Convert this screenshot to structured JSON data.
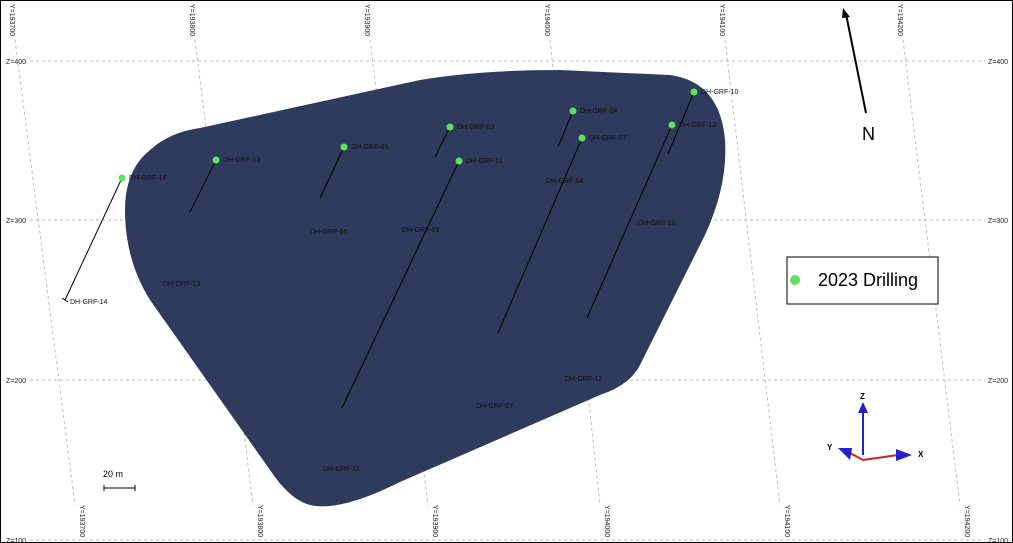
{
  "grid": {
    "z_labels": [
      "Z=400",
      "Z=300",
      "Z=200",
      "Z=100"
    ],
    "y_labels": [
      "Y=193700",
      "Y=193800",
      "Y=193900",
      "Y=194000",
      "Y=194100",
      "Y=194200"
    ]
  },
  "holes": [
    {
      "name": "DH-GRF-14",
      "end_label": "DH-GRF-14"
    },
    {
      "name": "DH-GRF-13",
      "end_label": "DH-GRF-13"
    },
    {
      "name": "DH-GRF-05",
      "end_label": "DH-GRF-05"
    },
    {
      "name": "DH-GRF-03",
      "end_label": "DH-GRF-03"
    },
    {
      "name": "DH-GRF-11",
      "end_label": "DH-GRF-11"
    },
    {
      "name": "DH-GRF-04",
      "end_label": "DH-GRF-04"
    },
    {
      "name": "DH-GRF-07",
      "end_label": "DH-GRF-07"
    },
    {
      "name": "DH-GRF-10",
      "end_label": "DH-GRF-10"
    },
    {
      "name": "DH-GRF-12",
      "end_label": "DH-GRF-12"
    }
  ],
  "legend": {
    "label": "2023 Drilling"
  },
  "north": "N",
  "scale_bar": "20 m",
  "axes": {
    "x": "X",
    "y": "Y",
    "z": "Z"
  }
}
